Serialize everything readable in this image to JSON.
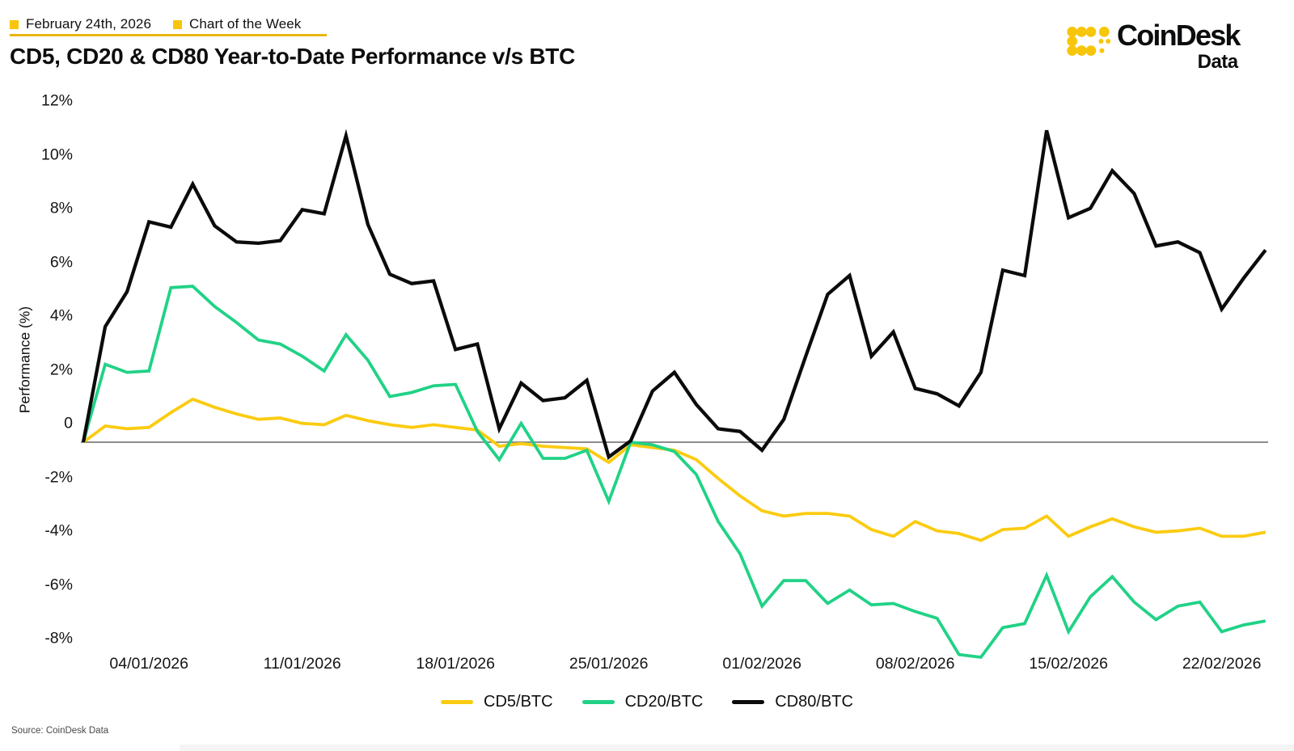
{
  "header": {
    "kicker": [
      {
        "label": "February 24th, 2026"
      },
      {
        "label": "Chart of the Week"
      }
    ],
    "title": "CD5, CD20 & CD80 Year-to-Date Performance v/s BTC"
  },
  "logo": {
    "brand": "CoinDesk",
    "sub": "Data",
    "icon": "coindesk-dotted-c"
  },
  "source": "Source: CoinDesk Data",
  "colors": {
    "brand_yellow": "#F7C60A",
    "kicker_underline": "#E9B70B",
    "cd5": "#FBCB10",
    "cd20": "#21D286",
    "cd80": "#0B0B0B",
    "zero_line": "#8C8C8C",
    "text": "#111111"
  },
  "chart_data": {
    "type": "line",
    "title": "CD5, CD20 & CD80 Year-to-Date Performance v/s BTC",
    "xlabel": "",
    "ylabel": "Performance (%)",
    "ylim": [
      -8,
      12
    ],
    "grid": "zero-line-only",
    "legend_position": "bottom",
    "x_start": "01/01/2026",
    "x_end": "24/02/2026",
    "x_interval": "daily",
    "x_tick_labels": [
      "04/01/2026",
      "11/01/2026",
      "18/01/2026",
      "25/01/2026",
      "01/02/2026",
      "08/02/2026",
      "15/02/2026",
      "22/02/2026"
    ],
    "x_tick_day_indices": [
      3,
      10,
      17,
      24,
      31,
      38,
      45,
      52
    ],
    "y_ticks": [
      {
        "label": "12%",
        "value": 12
      },
      {
        "label": "10%",
        "value": 10
      },
      {
        "label": "8%",
        "value": 8
      },
      {
        "label": "6%",
        "value": 6
      },
      {
        "label": "4%",
        "value": 4
      },
      {
        "label": "2%",
        "value": 2
      },
      {
        "label": "0",
        "value": 0
      },
      {
        "label": "-2%",
        "value": -2
      },
      {
        "label": "-4%",
        "value": -4
      },
      {
        "label": "-6%",
        "value": -6
      },
      {
        "label": "-8%",
        "value": -8
      }
    ],
    "series": [
      {
        "name": "CD5/BTC",
        "color_key": "cd5",
        "values": [
          0,
          0.6,
          0.5,
          0.55,
          1.1,
          1.6,
          1.3,
          1.05,
          0.85,
          0.9,
          0.7,
          0.65,
          1.0,
          0.8,
          0.65,
          0.55,
          0.65,
          0.55,
          0.45,
          -0.15,
          -0.05,
          -0.15,
          -0.2,
          -0.25,
          -0.75,
          -0.1,
          -0.2,
          -0.3,
          -0.65,
          -1.35,
          -2.0,
          -2.55,
          -2.75,
          -2.65,
          -2.65,
          -2.75,
          -3.25,
          -3.5,
          -2.95,
          -3.3,
          -3.4,
          -3.65,
          -3.25,
          -3.2,
          -2.75,
          -3.5,
          -3.15,
          -2.85,
          -3.15,
          -3.35,
          -3.3,
          -3.2,
          -3.5,
          -3.5,
          -3.35
        ]
      },
      {
        "name": "CD20/BTC",
        "color_key": "cd20",
        "values": [
          0,
          2.9,
          2.6,
          2.65,
          5.75,
          5.8,
          5.05,
          4.45,
          3.8,
          3.65,
          3.2,
          2.65,
          4.0,
          3.05,
          1.7,
          1.85,
          2.1,
          2.15,
          0.4,
          -0.65,
          0.7,
          -0.6,
          -0.6,
          -0.3,
          -2.2,
          0.0,
          -0.1,
          -0.35,
          -1.2,
          -2.95,
          -4.15,
          -6.1,
          -5.15,
          -5.15,
          -6.0,
          -5.5,
          -6.05,
          -6.0,
          -6.3,
          -6.55,
          -7.9,
          -8.0,
          -6.9,
          -6.75,
          -4.95,
          -7.05,
          -5.75,
          -5.0,
          -5.95,
          -6.6,
          -6.1,
          -5.95,
          -7.05,
          -6.8,
          -6.65
        ]
      },
      {
        "name": "CD80/BTC",
        "color_key": "cd80",
        "values": [
          0,
          4.3,
          5.6,
          8.2,
          8.0,
          9.6,
          8.05,
          7.45,
          7.4,
          7.5,
          8.65,
          8.5,
          11.4,
          8.1,
          6.25,
          5.9,
          6.0,
          3.45,
          3.65,
          0.5,
          2.2,
          1.55,
          1.65,
          2.3,
          -0.55,
          0.05,
          1.9,
          2.6,
          1.4,
          0.5,
          0.4,
          -0.3,
          0.85,
          3.2,
          5.5,
          6.2,
          3.2,
          4.1,
          2.0,
          1.8,
          1.35,
          2.6,
          6.4,
          6.2,
          11.6,
          8.35,
          8.7,
          10.1,
          9.25,
          7.3,
          7.45,
          7.05,
          4.95,
          6.1,
          7.15
        ]
      }
    ]
  }
}
